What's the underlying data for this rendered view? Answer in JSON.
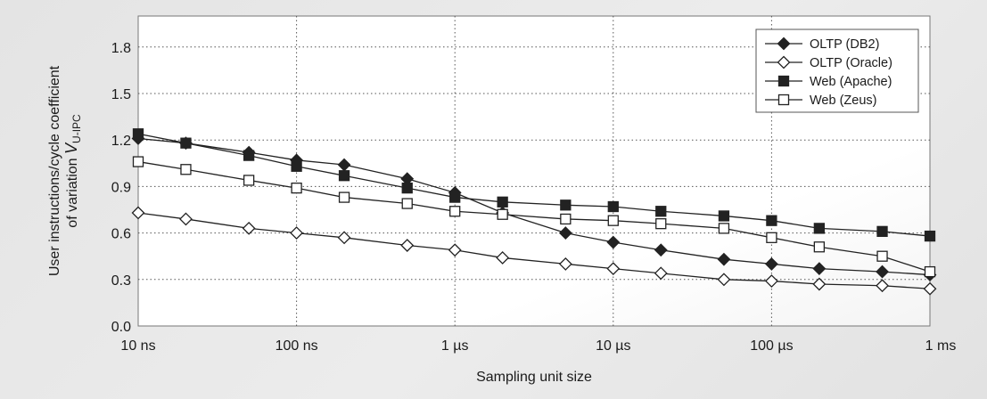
{
  "chart_data": {
    "type": "line",
    "title": "",
    "xlabel": "Sampling unit size",
    "ylabel_line1": "User instructions/cycle coefficient",
    "ylabel_line2_prefix": "of variation ",
    "ylabel_symbol": "V",
    "ylabel_subscript": "U-IPC",
    "x_scale": "log",
    "x_unit": "ns",
    "xlim": [
      10,
      1000000
    ],
    "ylim": [
      0,
      2.0
    ],
    "grid": true,
    "legend_position": "top-right",
    "x_ticks": [
      {
        "value": 10,
        "label": "10 ns"
      },
      {
        "value": 100,
        "label": "100 ns"
      },
      {
        "value": 1000,
        "label": "1 µs"
      },
      {
        "value": 10000,
        "label": "10 µs"
      },
      {
        "value": 100000,
        "label": "100 µs"
      },
      {
        "value": 1000000,
        "label": "1  ms"
      }
    ],
    "y_ticks": [
      {
        "value": 0.0,
        "label": "0.0"
      },
      {
        "value": 0.3,
        "label": "0.3"
      },
      {
        "value": 0.6,
        "label": "0.6"
      },
      {
        "value": 0.9,
        "label": "0.9"
      },
      {
        "value": 1.2,
        "label": "1.2"
      },
      {
        "value": 1.5,
        "label": "1.5"
      },
      {
        "value": 1.8,
        "label": "1.8"
      }
    ],
    "x": [
      10,
      20,
      50,
      100,
      200,
      500,
      1000,
      2000,
      5000,
      10000,
      20000,
      50000,
      100000,
      200000,
      500000,
      1000000
    ],
    "series": [
      {
        "name": "OLTP (DB2)",
        "marker": "diamond-filled",
        "values": [
          1.21,
          1.18,
          1.12,
          1.07,
          1.04,
          0.95,
          0.86,
          0.73,
          0.6,
          0.54,
          0.49,
          0.43,
          0.4,
          0.37,
          0.35,
          0.33
        ]
      },
      {
        "name": "OLTP (Oracle)",
        "marker": "diamond-open",
        "values": [
          0.73,
          0.69,
          0.63,
          0.6,
          0.57,
          0.52,
          0.49,
          0.44,
          0.4,
          0.37,
          0.34,
          0.3,
          0.29,
          0.27,
          0.26,
          0.24
        ]
      },
      {
        "name": "Web (Apache)",
        "marker": "square-filled",
        "values": [
          1.24,
          1.18,
          1.1,
          1.03,
          0.97,
          0.89,
          0.83,
          0.8,
          0.78,
          0.77,
          0.74,
          0.71,
          0.68,
          0.63,
          0.61,
          0.58
        ]
      },
      {
        "name": "Web (Zeus)",
        "marker": "square-open",
        "values": [
          1.06,
          1.01,
          0.94,
          0.89,
          0.83,
          0.79,
          0.74,
          0.72,
          0.69,
          0.68,
          0.66,
          0.63,
          0.57,
          0.51,
          0.45,
          0.35
        ]
      }
    ],
    "colors": {
      "line": "#222222",
      "grid": "#555555",
      "plot_background": "#ffffff",
      "figure_background": "#e6e6e6"
    }
  }
}
